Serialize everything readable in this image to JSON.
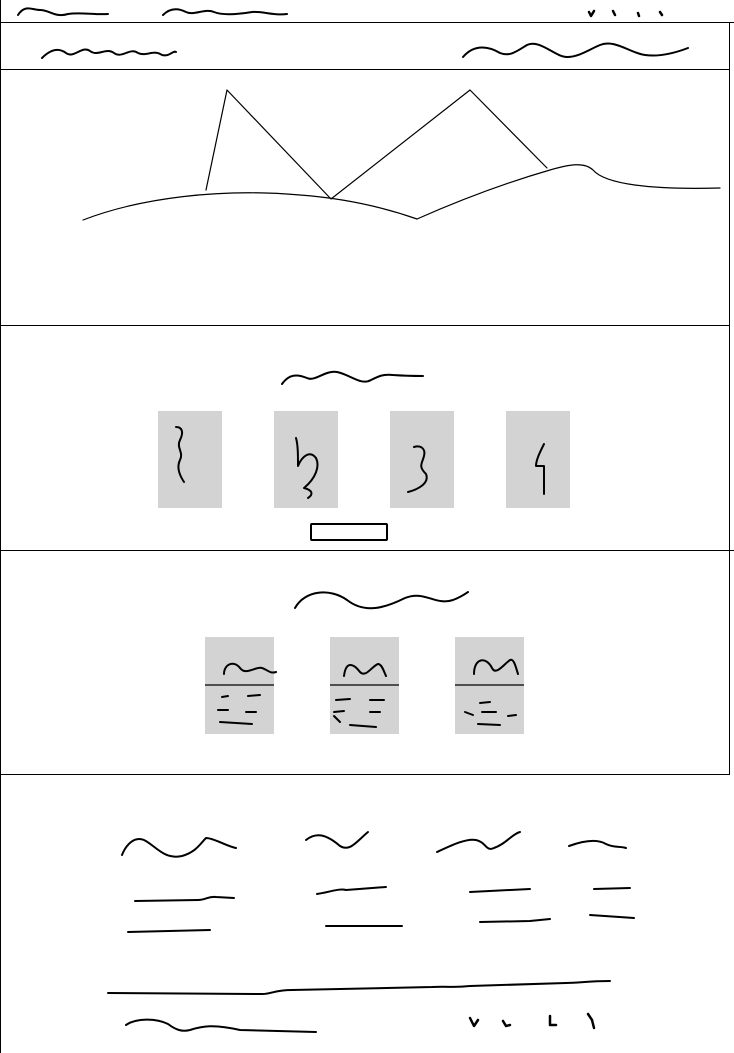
{
  "colors": {
    "ink": "#000000",
    "placeholder_fill": "#d3d3d3",
    "background": "#ffffff"
  },
  "top_bar": {
    "text_items": 2,
    "icon_items": 4
  },
  "header": {
    "left_item": "scribbled-text",
    "right_item": "scribbled-text"
  },
  "hero": {
    "content": "mountain-landscape-sketch"
  },
  "feature_section": {
    "heading": "scribbled-text",
    "cards": [
      {
        "glyph": "squiggle-1"
      },
      {
        "glyph": "squiggle-2"
      },
      {
        "glyph": "squiggle-3"
      },
      {
        "glyph": "squiggle-4"
      }
    ],
    "button": "outlined-button"
  },
  "pricing_section": {
    "heading": "scribbled-text",
    "cards": [
      {
        "title": "scribbled-text"
      },
      {
        "title": "scribbled-text"
      },
      {
        "title": "scribbled-text"
      }
    ]
  },
  "footer": {
    "columns": 4,
    "bottom_icons": 4
  }
}
